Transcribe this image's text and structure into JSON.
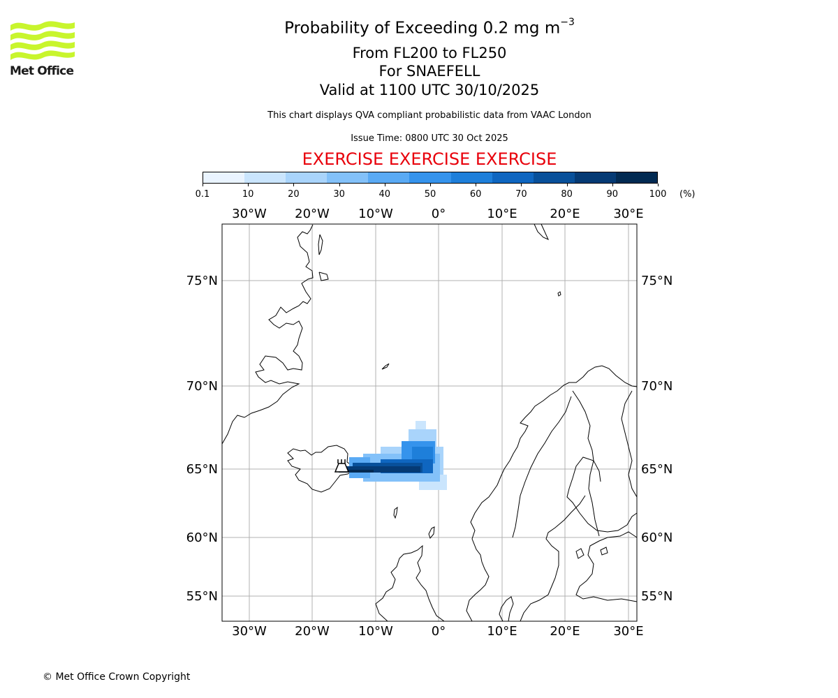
{
  "header": {
    "logo_text": "Met Office",
    "title_main": "Probability of Exceeding 0.2 mg m",
    "title_exponent": "−3",
    "subtitle_levels": "From FL200 to FL250",
    "subtitle_volcano": "For SNAEFELL",
    "subtitle_valid": "Valid at 1100 UTC 30/10/2025",
    "description": "This chart displays QVA compliant probabilistic data from VAAC London",
    "issue_time": "Issue Time: 0800 UTC 30 Oct 2025",
    "exercise_banner": "EXERCISE EXERCISE EXERCISE"
  },
  "colorbar": {
    "ticks": [
      "0.1",
      "10",
      "20",
      "30",
      "40",
      "50",
      "60",
      "70",
      "80",
      "90",
      "100"
    ],
    "unit": "(%)",
    "colors": [
      "#eaf4ff",
      "#cae5fd",
      "#a9d4fb",
      "#83c1f9",
      "#5aaaf4",
      "#3593ec",
      "#1e7fda",
      "#0f66c0",
      "#08509a",
      "#053a74",
      "#022a52"
    ]
  },
  "map": {
    "lon_labels": [
      "30°W",
      "20°W",
      "10°W",
      "0°",
      "10°E",
      "20°E",
      "30°E"
    ],
    "lat_labels_left": [
      "75°N",
      "70°N",
      "65°N",
      "60°N",
      "55°N"
    ],
    "lat_labels_right": [
      "75°N",
      "70°N",
      "65°N",
      "60°N",
      "55°N"
    ],
    "grid_color": "#b0b0b0",
    "coast_color": "#000000"
  },
  "footer": {
    "copyright": "© Met Office Crown Copyright"
  }
}
